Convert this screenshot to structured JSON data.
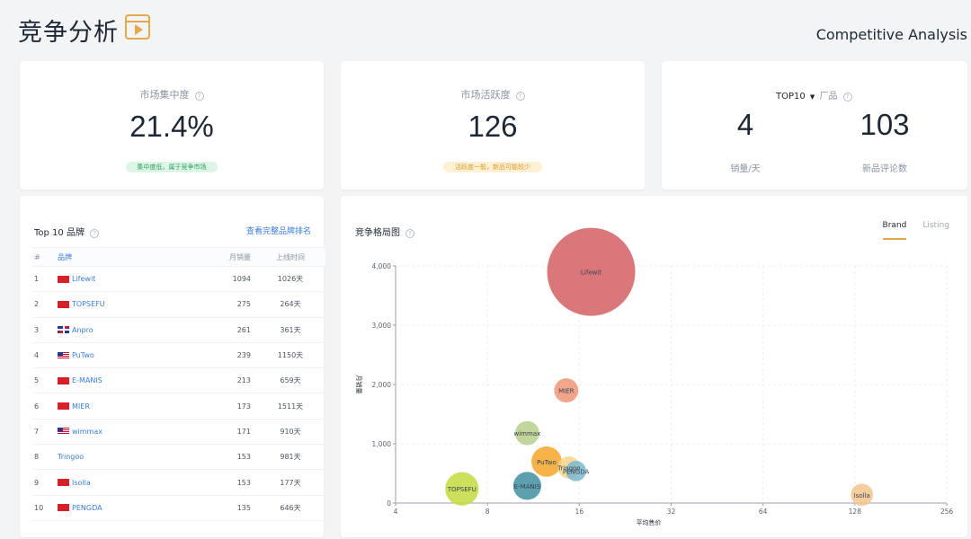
{
  "header": {
    "title": "竞争分析",
    "subtitle": "Competitive Analysis"
  },
  "kpis": {
    "concentration": {
      "label": "市场集中度",
      "value": "21.4%",
      "tag": "集中度低，属于竞争市场"
    },
    "activity": {
      "label": "市场活跃度",
      "value": "126",
      "tag": "活跃度一般，新品可能较少"
    },
    "brand": {
      "selector": "TOP10",
      "label": "厂品",
      "left_value": "4",
      "left_label": "销量/天",
      "right_value": "103",
      "right_label": "新品评论数"
    }
  },
  "colors": {
    "accent": "#e4a94a",
    "link": "#3b7ddd",
    "tag_green_bg": "#dcf5e7",
    "tag_green_fg": "#2e9e5f",
    "tag_yellow_bg": "#fdf0d3",
    "tag_yellow_fg": "#d99a2b"
  },
  "top10": {
    "title": "Top 10 品牌",
    "link": "查看完整品牌排名",
    "columns": [
      "#",
      "品牌",
      "月销量",
      "上线时间"
    ],
    "rows": [
      {
        "idx": "1",
        "flag": "cn",
        "brand": "Lifewit",
        "sales": "1094",
        "days": "1026天"
      },
      {
        "idx": "2",
        "flag": "cn",
        "brand": "TOPSEFU",
        "sales": "275",
        "days": "264天"
      },
      {
        "idx": "3",
        "flag": "uk",
        "brand": "Anpro",
        "sales": "261",
        "days": "361天"
      },
      {
        "idx": "4",
        "flag": "us",
        "brand": "PuTwo",
        "sales": "239",
        "days": "1150天"
      },
      {
        "idx": "5",
        "flag": "cn",
        "brand": "E-MANIS",
        "sales": "213",
        "days": "659天"
      },
      {
        "idx": "6",
        "flag": "cn",
        "brand": "MIER",
        "sales": "173",
        "days": "1511天"
      },
      {
        "idx": "7",
        "flag": "us",
        "brand": "wimmax",
        "sales": "171",
        "days": "910天"
      },
      {
        "idx": "8",
        "flag": "",
        "brand": "Tringoo",
        "sales": "153",
        "days": "981天"
      },
      {
        "idx": "9",
        "flag": "cn",
        "brand": "Isolla",
        "sales": "153",
        "days": "177天"
      },
      {
        "idx": "10",
        "flag": "cn",
        "brand": "PENGDA",
        "sales": "135",
        "days": "646天"
      }
    ]
  },
  "competition": {
    "title": "竞争格局图",
    "tabs": [
      "Brand",
      "Listing"
    ],
    "active_tab": "Brand"
  },
  "chart_data": {
    "type": "scatter",
    "xlabel": "平均售价",
    "ylabel": "月销量",
    "x_scale": "log2",
    "x_ticks": [
      "4",
      "8",
      "16",
      "32",
      "64",
      "128",
      "256"
    ],
    "y_ticks": [
      "0",
      "1,000",
      "2,000",
      "3,000",
      "4,000"
    ],
    "xlim": [
      4,
      256
    ],
    "ylim": [
      0,
      4000
    ],
    "grid": true,
    "points": [
      {
        "label": "Lifewit",
        "x": 17.5,
        "y": 3900,
        "size": 1094,
        "color": "#d45f64"
      },
      {
        "label": "MIER",
        "x": 14.5,
        "y": 1900,
        "size": 173,
        "color": "#ef9576"
      },
      {
        "label": "wimmax",
        "x": 10.8,
        "y": 1180,
        "size": 171,
        "color": "#b5cf8a"
      },
      {
        "label": "PuTwo",
        "x": 12.5,
        "y": 700,
        "size": 239,
        "color": "#f4a62a"
      },
      {
        "label": "Tringoo",
        "x": 14.8,
        "y": 600,
        "size": 153,
        "color": "#f6d58a"
      },
      {
        "label": "PENGDA",
        "x": 15.6,
        "y": 540,
        "size": 135,
        "color": "#7ab9cf"
      },
      {
        "label": "E-MANIS",
        "x": 10.8,
        "y": 290,
        "size": 213,
        "color": "#3f8fa0"
      },
      {
        "label": "TOPSEFU",
        "x": 6.6,
        "y": 240,
        "size": 275,
        "color": "#c6d93f"
      },
      {
        "label": "Isolla",
        "x": 135,
        "y": 140,
        "size": 153,
        "color": "#f3c58e"
      }
    ]
  }
}
